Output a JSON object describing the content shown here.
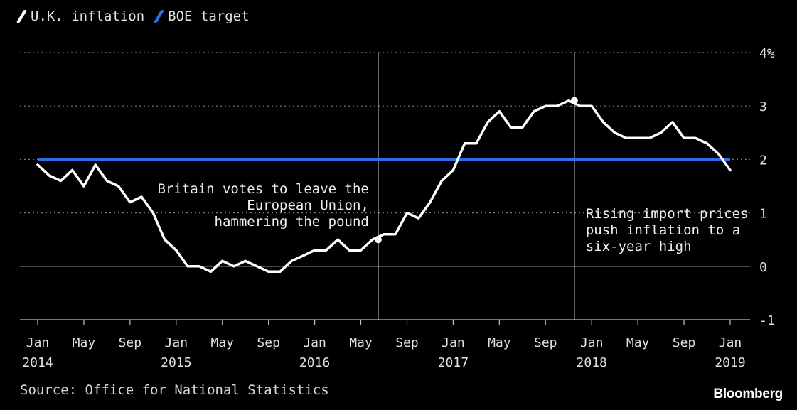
{
  "legend": {
    "inflation_label": "U.K. inflation",
    "target_label": "BOE target",
    "inflation_color": "#ffffff",
    "target_color": "#2b6ee6"
  },
  "source": "Source: Office for National Statistics",
  "brand": "Bloomberg",
  "chart_data": {
    "type": "line",
    "title": "",
    "xlabel": "",
    "ylabel": "",
    "ylim": [
      -1,
      4
    ],
    "y_ticks": [
      {
        "value": 4,
        "label": "4%"
      },
      {
        "value": 3,
        "label": "3"
      },
      {
        "value": 2,
        "label": "2"
      },
      {
        "value": 1,
        "label": "1"
      },
      {
        "value": 0,
        "label": "0"
      },
      {
        "value": -1,
        "label": "-1"
      }
    ],
    "x_ticks": [
      {
        "index": 0,
        "month": "Jan",
        "year": "2014"
      },
      {
        "index": 4,
        "month": "May",
        "year": ""
      },
      {
        "index": 8,
        "month": "Sep",
        "year": ""
      },
      {
        "index": 12,
        "month": "Jan",
        "year": "2015"
      },
      {
        "index": 16,
        "month": "May",
        "year": ""
      },
      {
        "index": 20,
        "month": "Sep",
        "year": ""
      },
      {
        "index": 24,
        "month": "Jan",
        "year": "2016"
      },
      {
        "index": 28,
        "month": "May",
        "year": ""
      },
      {
        "index": 32,
        "month": "Sep",
        "year": ""
      },
      {
        "index": 36,
        "month": "Jan",
        "year": "2017"
      },
      {
        "index": 40,
        "month": "May",
        "year": ""
      },
      {
        "index": 44,
        "month": "Sep",
        "year": ""
      },
      {
        "index": 48,
        "month": "Jan",
        "year": "2018"
      },
      {
        "index": 52,
        "month": "May",
        "year": ""
      },
      {
        "index": 56,
        "month": "Sep",
        "year": ""
      },
      {
        "index": 60,
        "month": "Jan",
        "year": "2019"
      }
    ],
    "x_range": [
      0,
      60
    ],
    "series": [
      {
        "name": "U.K. inflation",
        "start": "Jan 2014",
        "values": [
          1.9,
          1.7,
          1.6,
          1.8,
          1.5,
          1.9,
          1.6,
          1.5,
          1.2,
          1.3,
          1.0,
          0.5,
          0.3,
          0.0,
          0.0,
          -0.1,
          0.1,
          0.0,
          0.1,
          0.0,
          -0.1,
          -0.1,
          0.1,
          0.2,
          0.3,
          0.3,
          0.5,
          0.3,
          0.3,
          0.5,
          0.6,
          0.6,
          1.0,
          0.9,
          1.2,
          1.6,
          1.8,
          2.3,
          2.3,
          2.7,
          2.9,
          2.6,
          2.6,
          2.9,
          3.0,
          3.0,
          3.1,
          3.0,
          3.0,
          2.7,
          2.5,
          2.4,
          2.4,
          2.4,
          2.5,
          2.7,
          2.4,
          2.4,
          2.3,
          2.1,
          1.8
        ]
      },
      {
        "name": "BOE target",
        "values": [
          2,
          2
        ]
      }
    ],
    "annotations": [
      {
        "index": 29.5,
        "value": 0.5,
        "lines": [
          "Britain votes to leave the",
          "European Union,",
          "hammering the pound"
        ],
        "align": "end"
      },
      {
        "index": 46.5,
        "value": 3.1,
        "lines": [
          "Rising import prices",
          "push inflation to a",
          "six-year high"
        ],
        "align": "start"
      }
    ]
  }
}
